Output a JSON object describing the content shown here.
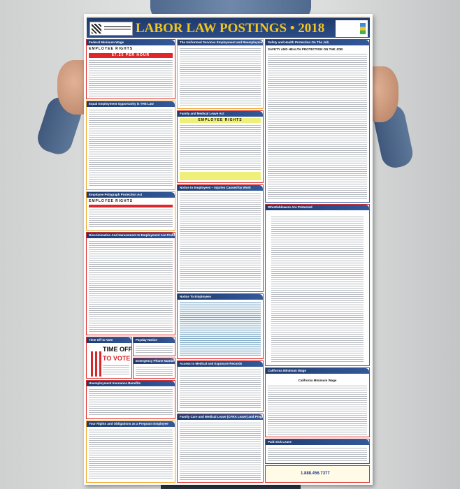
{
  "poster": {
    "title": "LABOR LAW POSTINGS • 2018",
    "phone": "1.888.456.7377",
    "brand_color": "#1f3a6b",
    "title_color": "#f2c41d",
    "border_color": "#e02a2a",
    "sections": {
      "federal_min_wage": {
        "heading": "Federal Minimum Wage",
        "banner": "EMPLOYEE RIGHTS",
        "rate": "$7.25 PER HOUR"
      },
      "userra": {
        "heading": "The Uniformed Services Employment and Reemployment Rights Act"
      },
      "safety": {
        "heading": "Safety and Health Protection On The Job",
        "sub": "SAFETY AND HEALTH PROTECTION ON THE JOB"
      },
      "eeo": {
        "heading": "Equal Employment Opportunity is THE Law"
      },
      "fmla": {
        "heading": "Family and Medical Leave Act",
        "banner": "EMPLOYEE RIGHTS"
      },
      "injuries": {
        "heading": "Notice to Employees – Injuries Caused by Work"
      },
      "polygraph": {
        "heading": "Employee Polygraph Protection Act",
        "banner": "EMPLOYEE RIGHTS"
      },
      "discrimination": {
        "heading": "Discrimination And Harassment In Employment Are Prohibited By Law"
      },
      "whistleblowers": {
        "heading": "Whistleblowers Are Protected"
      },
      "notice_employees": {
        "heading": "Notice To Employees"
      },
      "vote": {
        "heading": "Time Off to Vote",
        "line1": "TIME OFF",
        "line2": "TO VOTE"
      },
      "payday": {
        "heading": "Payday Notice"
      },
      "emergency": {
        "heading": "Emergency Phone Numbers"
      },
      "unemployment": {
        "heading": "Unemployment Insurance Benefits"
      },
      "medical_records": {
        "heading": "Access to Medical and Exposure Records"
      },
      "ca_min_wage": {
        "heading": "California Minimum Wage",
        "sub": "California Minimum Wage"
      },
      "pregnant": {
        "heading": "Your Rights and Obligations as a Pregnant Employee"
      },
      "cfra": {
        "heading": "Family Care and Medical Leave (CFRA Leave) and Pregnancy Disability Leave"
      },
      "sick_leave": {
        "heading": "Paid Sick Leave"
      }
    }
  }
}
